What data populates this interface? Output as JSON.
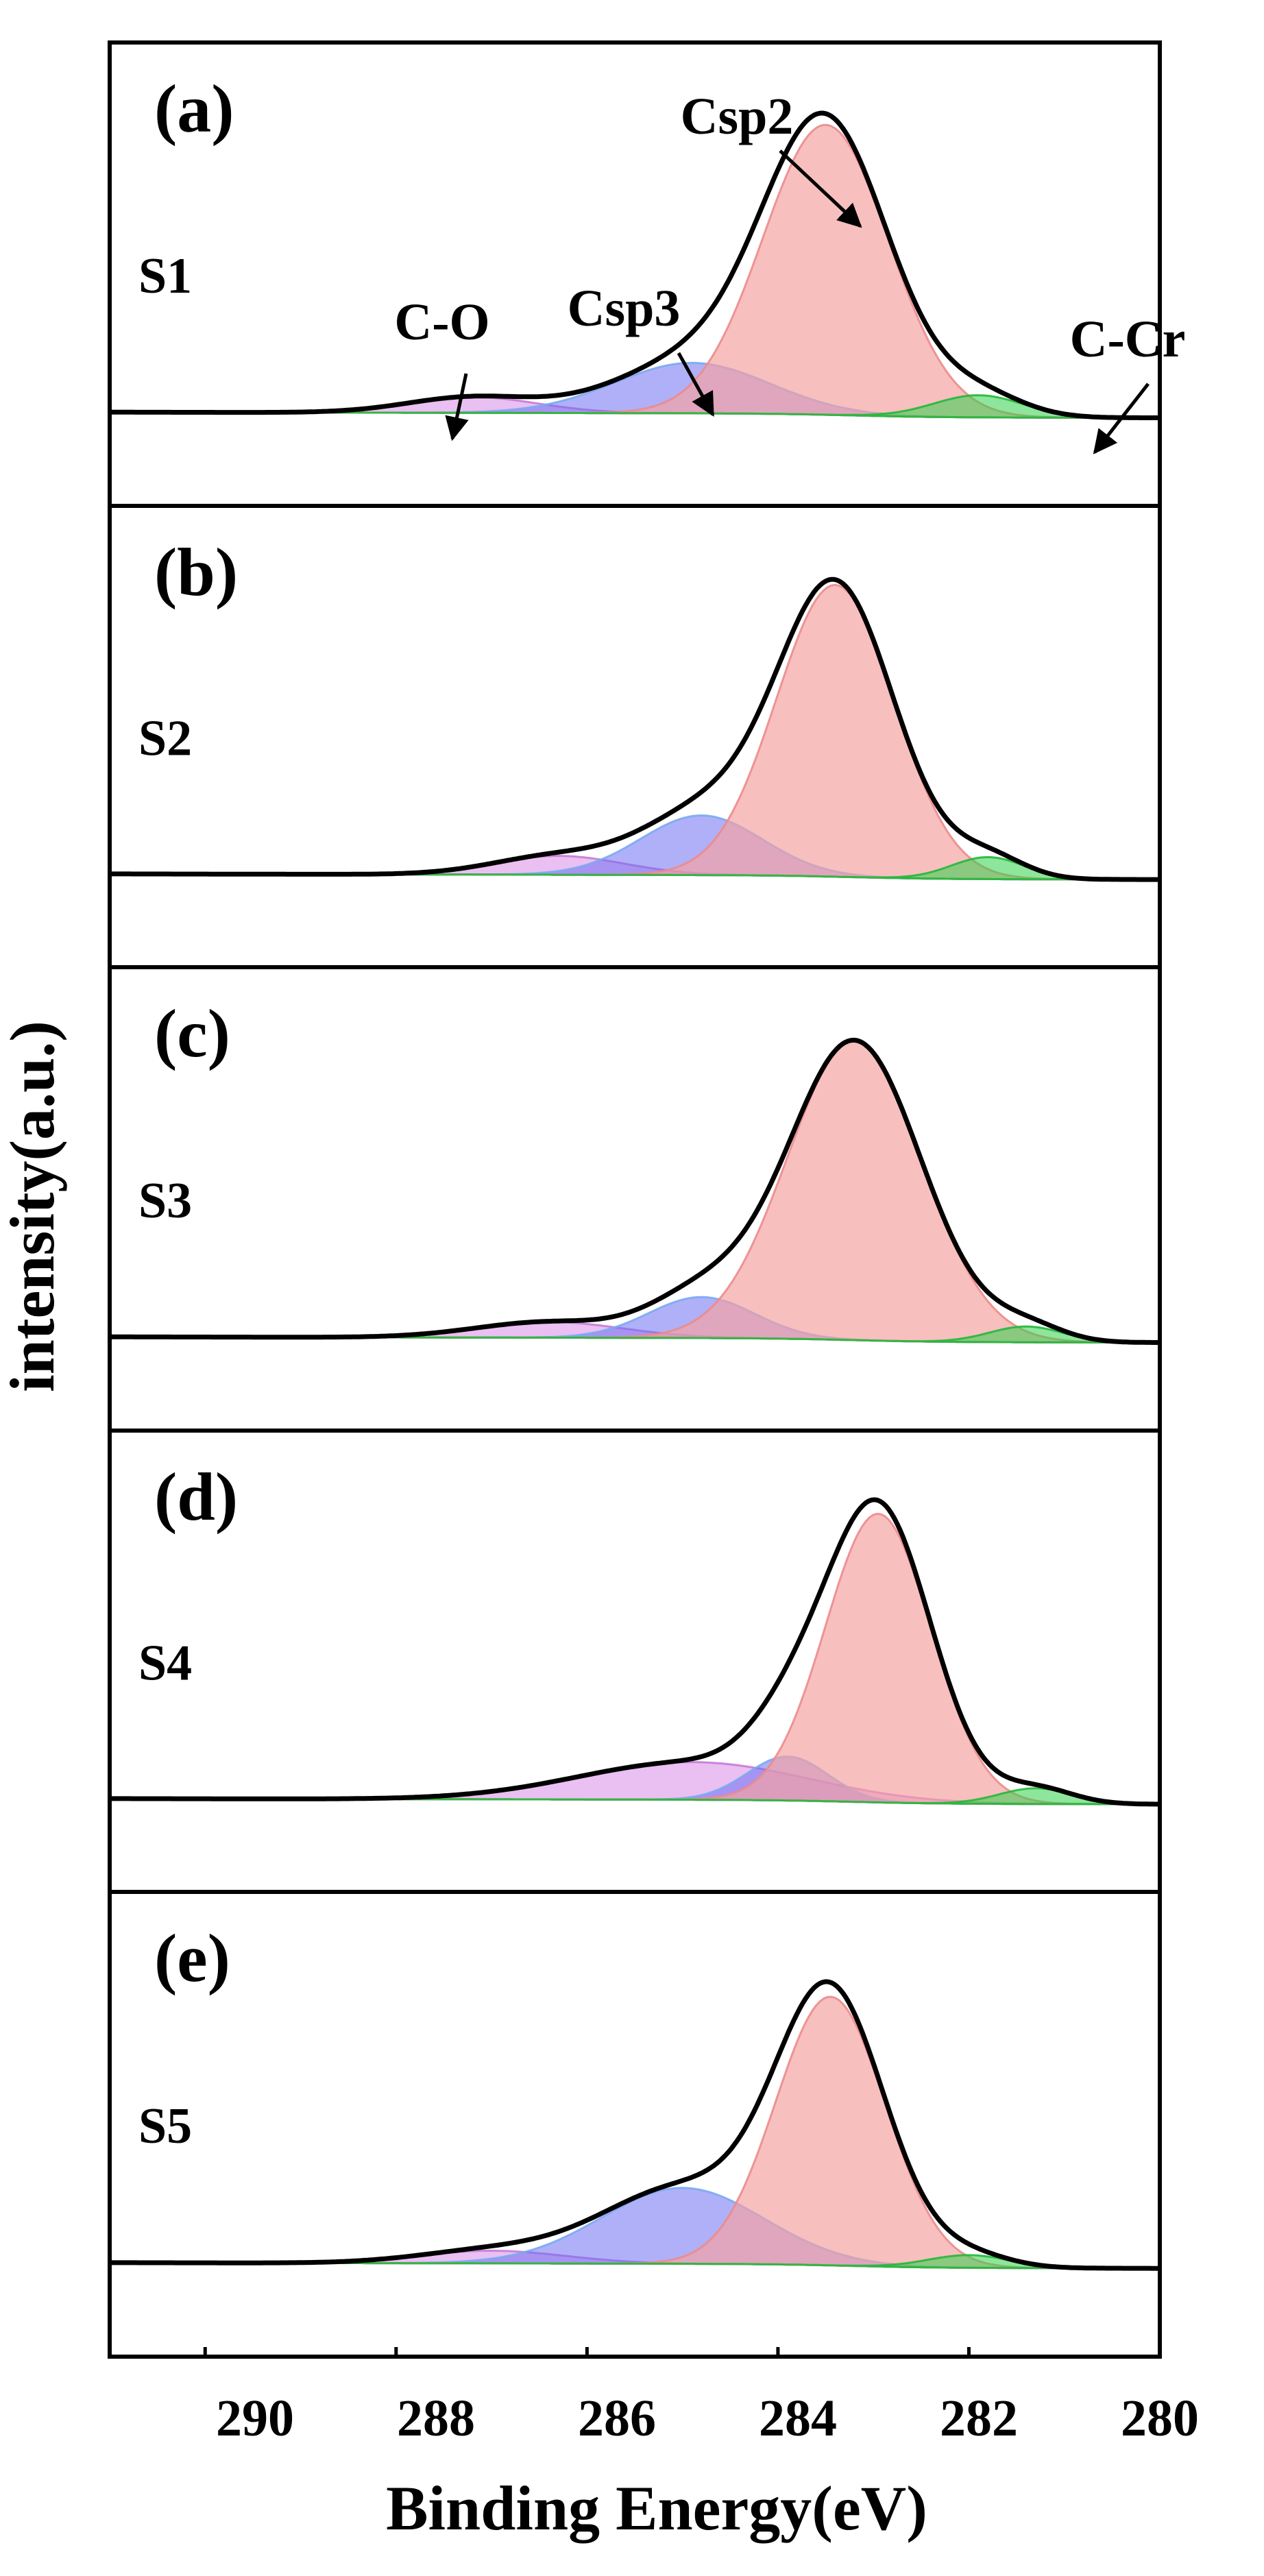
{
  "figure": {
    "ylabel": "intensity(a.u.)",
    "xlabel": "Binding Energy(eV)",
    "xlim": [
      291,
      280
    ],
    "xticks": [
      290,
      288,
      286,
      284,
      282,
      280
    ],
    "colors": {
      "envelope": "#000000",
      "C-O": "#d98ae6",
      "Csp3": "#6f6ff2",
      "Csp3_alt": "#7aaaf2",
      "Csp2": "#f4a0a0",
      "Csp2_edge": "#ec8b8b",
      "C-Cr": "#2fd24a"
    }
  },
  "chart_data": [
    {
      "type": "line",
      "panel": "(a)",
      "sample": "S1",
      "annotations": [
        "Csp2",
        "Csp3",
        "C-O",
        "C-Cr"
      ],
      "peaks": [
        {
          "name": "C-O",
          "center": 287.2,
          "height": 0.05,
          "fwhm": 1.6
        },
        {
          "name": "Csp3",
          "center": 284.9,
          "height": 0.16,
          "fwhm": 1.9
        },
        {
          "name": "Csp2",
          "center": 283.5,
          "height": 0.92,
          "fwhm": 1.55
        },
        {
          "name": "C-Cr",
          "center": 281.9,
          "height": 0.07,
          "fwhm": 1.1
        }
      ]
    },
    {
      "type": "line",
      "panel": "(b)",
      "sample": "S2",
      "annotations": [],
      "peaks": [
        {
          "name": "C-O",
          "center": 286.3,
          "height": 0.06,
          "fwhm": 1.6
        },
        {
          "name": "Csp3",
          "center": 284.8,
          "height": 0.19,
          "fwhm": 1.5
        },
        {
          "name": "Csp2",
          "center": 283.4,
          "height": 0.93,
          "fwhm": 1.45
        },
        {
          "name": "C-Cr",
          "center": 281.8,
          "height": 0.07,
          "fwhm": 0.9
        }
      ]
    },
    {
      "type": "line",
      "panel": "(c)",
      "sample": "S3",
      "annotations": [],
      "peaks": [
        {
          "name": "C-O",
          "center": 286.4,
          "height": 0.05,
          "fwhm": 1.8
        },
        {
          "name": "Csp3",
          "center": 284.8,
          "height": 0.13,
          "fwhm": 1.3
        },
        {
          "name": "Csp2",
          "center": 283.2,
          "height": 0.95,
          "fwhm": 1.65
        },
        {
          "name": "C-Cr",
          "center": 281.4,
          "height": 0.05,
          "fwhm": 0.9
        }
      ]
    },
    {
      "type": "line",
      "panel": "(d)",
      "sample": "S4",
      "annotations": [],
      "peaks": [
        {
          "name": "C-O",
          "center": 284.9,
          "height": 0.12,
          "fwhm": 2.8
        },
        {
          "name": "Csp3",
          "center": 283.9,
          "height": 0.14,
          "fwhm": 1.0
        },
        {
          "name": "Csp2",
          "center": 282.95,
          "height": 0.92,
          "fwhm": 1.3
        },
        {
          "name": "C-Cr",
          "center": 281.3,
          "height": 0.05,
          "fwhm": 0.9
        }
      ]
    },
    {
      "type": "line",
      "panel": "(e)",
      "sample": "S5",
      "annotations": [],
      "peaks": [
        {
          "name": "C-O",
          "center": 287.0,
          "height": 0.04,
          "fwhm": 1.8
        },
        {
          "name": "Csp3",
          "center": 285.0,
          "height": 0.24,
          "fwhm": 2.0
        },
        {
          "name": "Csp2",
          "center": 283.45,
          "height": 0.85,
          "fwhm": 1.35
        },
        {
          "name": "C-Cr",
          "center": 282.0,
          "height": 0.04,
          "fwhm": 1.0
        }
      ]
    }
  ]
}
